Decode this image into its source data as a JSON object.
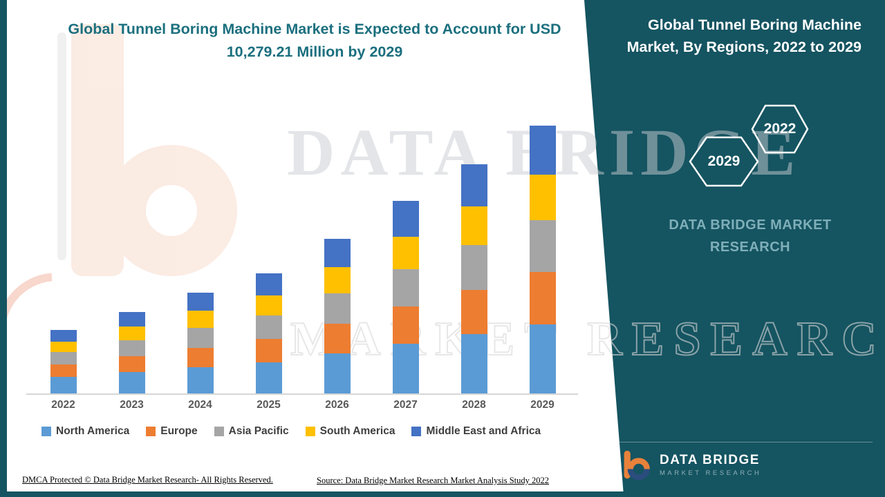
{
  "header": {
    "title": "Global Tunnel Boring Machine Market is Expected to Account for USD 10,279.21 Million by 2029"
  },
  "watermark": {
    "line1": "DATA BRIDGE",
    "line2": "MARKET RESEARCH"
  },
  "chart_data": {
    "type": "bar",
    "stacked": true,
    "title": "Global Tunnel Boring Machine Market is Expected to Account for USD 10,279.21 Million by 2029",
    "unit": "USD Million",
    "categories": [
      "2022",
      "2023",
      "2024",
      "2025",
      "2026",
      "2027",
      "2028",
      "2029"
    ],
    "series": [
      {
        "name": "North America",
        "color": "#5B9BD5",
        "values": [
          640,
          820,
          1010,
          1200,
          1540,
          1910,
          2280,
          2660
        ]
      },
      {
        "name": "Europe",
        "color": "#ED7D31",
        "values": [
          470,
          600,
          750,
          890,
          1150,
          1420,
          1700,
          2000
        ]
      },
      {
        "name": "Asia Pacific",
        "color": "#A5A5A5",
        "values": [
          480,
          610,
          760,
          900,
          1160,
          1440,
          1720,
          2000
        ]
      },
      {
        "name": "South America",
        "color": "#FFC000",
        "values": [
          410,
          530,
          650,
          780,
          1000,
          1240,
          1480,
          1730
        ]
      },
      {
        "name": "Middle East and Africa",
        "color": "#4472C4",
        "values": [
          440,
          570,
          710,
          850,
          1100,
          1370,
          1620,
          1889.21
        ]
      }
    ],
    "totals": [
      2440,
      3130,
      3880,
      4620,
      5950,
      7380,
      8800,
      10279.21
    ],
    "xlabel": "",
    "ylabel": "",
    "ylim": [
      0,
      10279.21
    ],
    "gridlines": false,
    "legend_position": "bottom"
  },
  "panel": {
    "title": "Global Tunnel Boring Machine Market, By Regions, 2022 to 2029",
    "badge_back": "2022",
    "badge_front": "2029",
    "brand_line1": "DATA BRIDGE MARKET",
    "brand_line2": "RESEARCH",
    "logo_name": "DATA BRIDGE",
    "logo_sub": "MARKET RESEARCH"
  },
  "footer": {
    "dmca": "DMCA Protected © Data Bridge Market Research- All Rights Reserved.",
    "source": "Source: Data Bridge Market Research Market Analysis Study 2022"
  },
  "colors": {
    "panel_teal": "#155461",
    "title_teal": "#1B6F7E"
  }
}
